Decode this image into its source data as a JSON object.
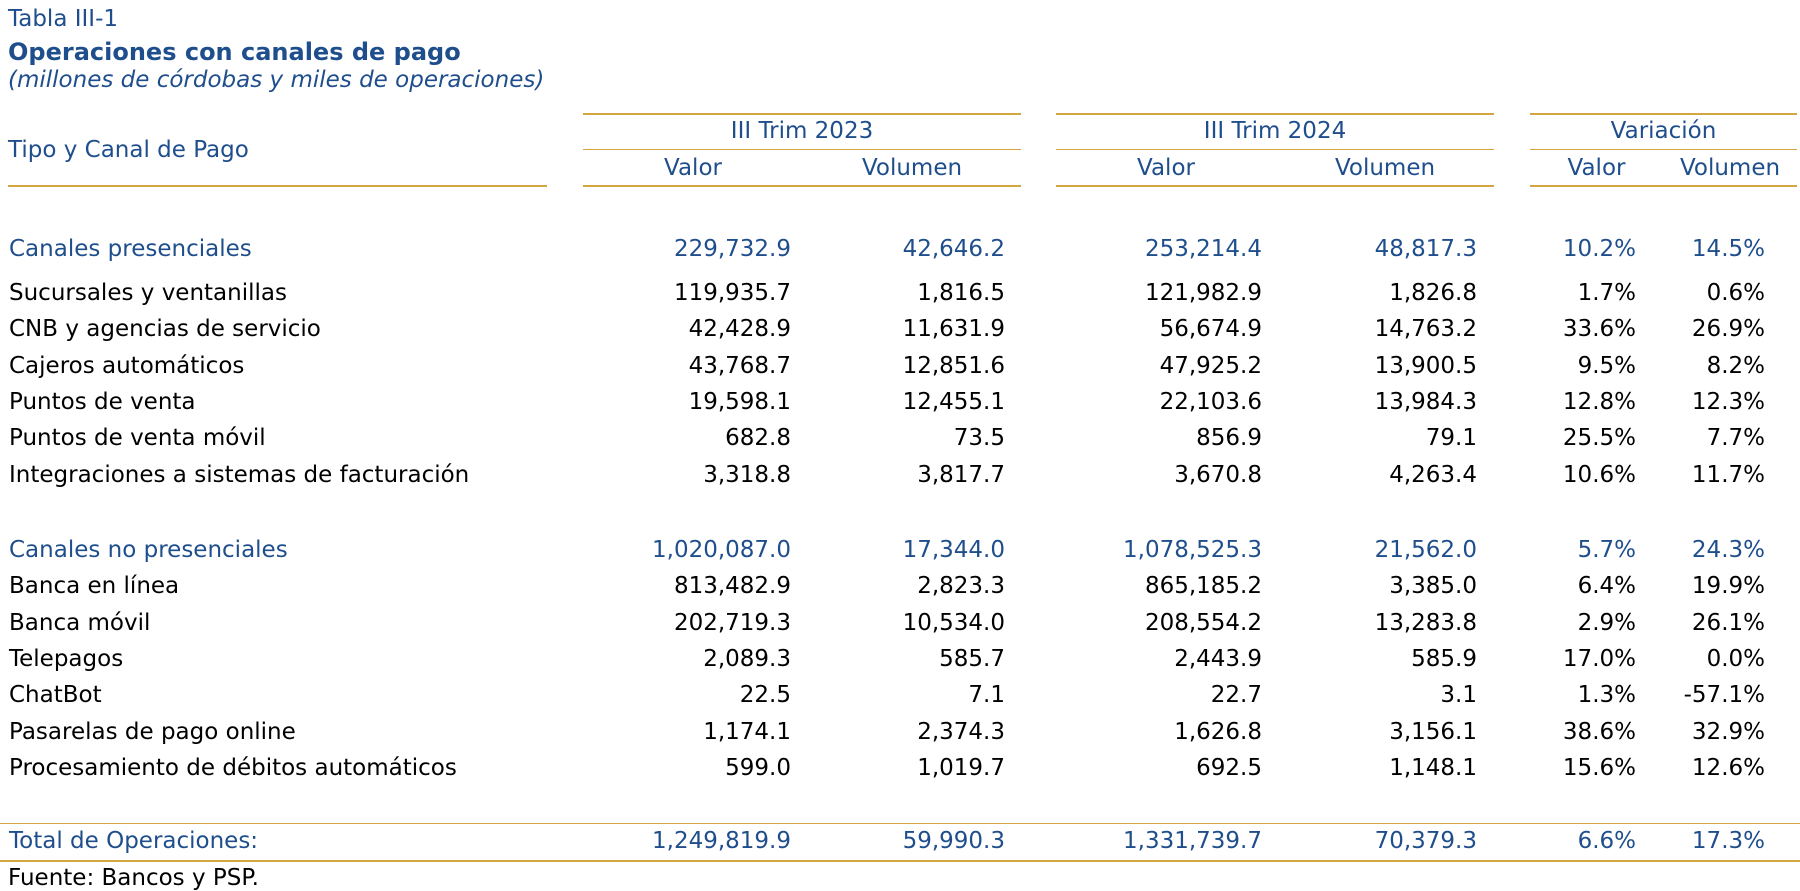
{
  "header": {
    "table_number": "Tabla III-1",
    "title": "Operaciones con canales de pago",
    "subtitle": "(millones de córdobas y miles de operaciones)"
  },
  "columns": {
    "row_header": "Tipo y Canal de Pago",
    "groups": [
      "III Trim 2023",
      "III Trim 2024",
      "Variación"
    ],
    "sub": [
      "Valor",
      "Volumen",
      "Valor",
      "Volumen",
      "Valor",
      "Volumen"
    ]
  },
  "sections": [
    {
      "title": [
        "Canales presenciales",
        "229,732.9",
        "42,646.2",
        "253,214.4",
        "48,817.3",
        "10.2%",
        "14.5%"
      ],
      "rows": [
        [
          "Sucursales y ventanillas",
          "119,935.7",
          "1,816.5",
          "121,982.9",
          "1,826.8",
          "1.7%",
          "0.6%"
        ],
        [
          "CNB y agencias de servicio",
          "42,428.9",
          "11,631.9",
          "56,674.9",
          "14,763.2",
          "33.6%",
          "26.9%"
        ],
        [
          "Cajeros automáticos",
          "43,768.7",
          "12,851.6",
          "47,925.2",
          "13,900.5",
          "9.5%",
          "8.2%"
        ],
        [
          "Puntos de venta",
          "19,598.1",
          "12,455.1",
          "22,103.6",
          "13,984.3",
          "12.8%",
          "12.3%"
        ],
        [
          "Puntos de venta móvil",
          "682.8",
          "73.5",
          "856.9",
          "79.1",
          "25.5%",
          "7.7%"
        ],
        [
          "Integraciones a sistemas de facturación",
          "3,318.8",
          "3,817.7",
          "3,670.8",
          "4,263.4",
          "10.6%",
          "11.7%"
        ]
      ]
    },
    {
      "title": [
        "Canales no presenciales",
        "1,020,087.0",
        "17,344.0",
        "1,078,525.3",
        "21,562.0",
        "5.7%",
        "24.3%"
      ],
      "rows": [
        [
          "Banca en línea",
          "813,482.9",
          "2,823.3",
          "865,185.2",
          "3,385.0",
          "6.4%",
          "19.9%"
        ],
        [
          "Banca móvil",
          "202,719.3",
          "10,534.0",
          "208,554.2",
          "13,283.8",
          "2.9%",
          "26.1%"
        ],
        [
          "Telepagos",
          "2,089.3",
          "585.7",
          "2,443.9",
          "585.9",
          "17.0%",
          "0.0%"
        ],
        [
          "ChatBot",
          "22.5",
          "7.1",
          "22.7",
          "3.1",
          "1.3%",
          "-57.1%"
        ],
        [
          "Pasarelas de pago online",
          "1,174.1",
          "2,374.3",
          "1,626.8",
          "3,156.1",
          "38.6%",
          "32.9%"
        ],
        [
          "Procesamiento de débitos automáticos",
          "599.0",
          "1,019.7",
          "692.5",
          "1,148.1",
          "15.6%",
          "12.6%"
        ]
      ]
    }
  ],
  "total": [
    "Total de Operaciones:",
    "1,249,819.9",
    "59,990.3",
    "1,331,739.7",
    "70,379.3",
    "6.6%",
    "17.3%"
  ],
  "footer": {
    "source": "Fuente: Bancos y PSP."
  },
  "colors": {
    "title_blue": "#1f4e8c",
    "rule_gold": "#d4a640"
  }
}
